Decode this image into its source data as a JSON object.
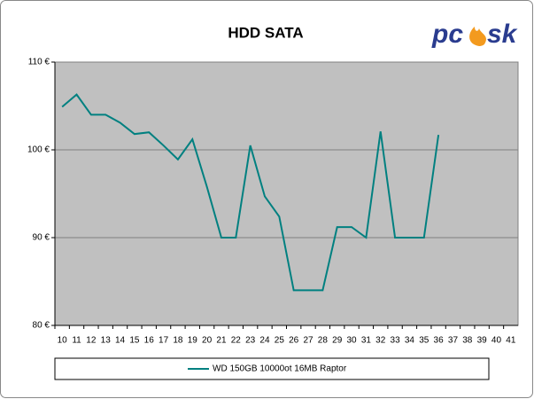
{
  "chart_data": {
    "type": "line",
    "title": "HDD SATA",
    "logo": [
      "pc",
      "sk"
    ],
    "categories": [
      "10",
      "11",
      "12",
      "13",
      "14",
      "15",
      "16",
      "17",
      "18",
      "19",
      "20",
      "21",
      "22",
      "23",
      "24",
      "25",
      "26",
      "27",
      "28",
      "29",
      "30",
      "31",
      "32",
      "33",
      "34",
      "35",
      "36",
      "37",
      "38",
      "39",
      "40",
      "41"
    ],
    "series": [
      {
        "name": "WD 150GB 10000ot 16MB Raptor",
        "color": "#008080",
        "values": [
          104.9,
          106.3,
          104.0,
          104.0,
          103.1,
          101.8,
          102.0,
          100.5,
          98.9,
          101.2,
          95.8,
          90.0,
          90.0,
          100.5,
          94.7,
          92.4,
          84.0,
          84.0,
          84.0,
          91.2,
          91.2,
          90.0,
          102.1,
          90.0,
          90.0,
          90.0,
          101.7,
          null,
          null,
          null,
          null,
          null
        ]
      }
    ],
    "ylim": [
      80,
      110
    ],
    "yticks": [
      {
        "value": 80,
        "label": "80 €"
      },
      {
        "value": 90,
        "label": "90 €"
      },
      {
        "value": 100,
        "label": "100 €"
      },
      {
        "value": 110,
        "label": "110 €"
      }
    ],
    "grid": true
  }
}
